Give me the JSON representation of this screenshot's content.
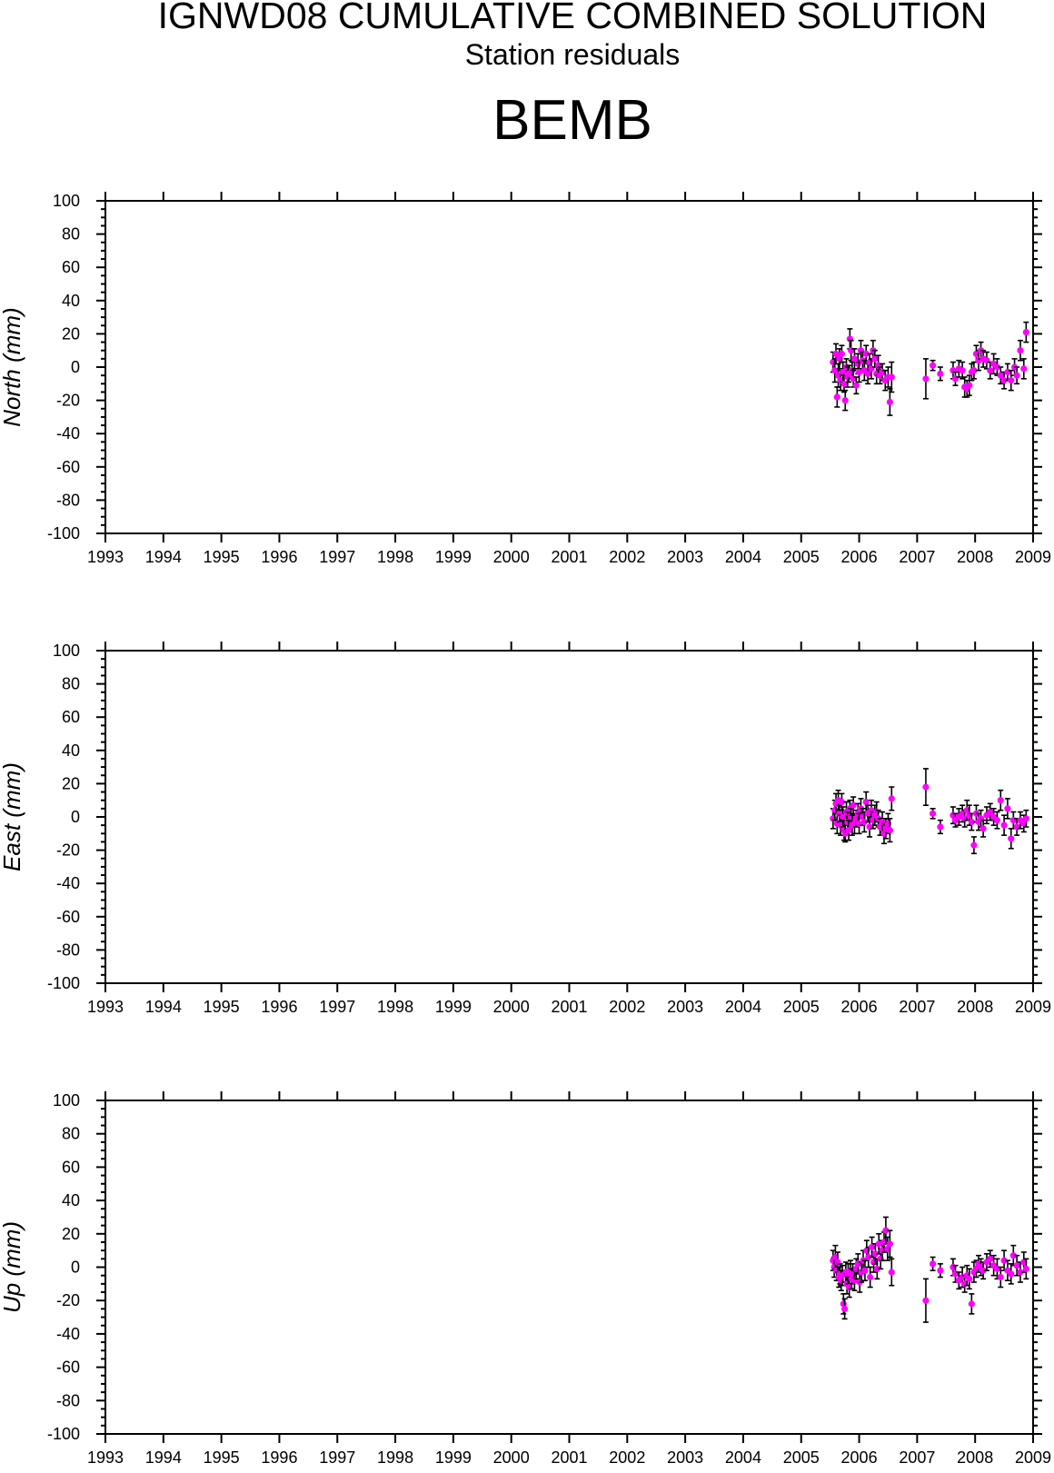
{
  "header": {
    "title": "IGNWD08 CUMULATIVE COMBINED SOLUTION",
    "subtitle": "Station residuals",
    "station": "BEMB"
  },
  "colors": {
    "marker": "#ff00ff",
    "errorbar": "#000000",
    "axis": "#000000"
  },
  "chart_data": [
    {
      "type": "scatter",
      "ylabel": "North (mm)",
      "xlim": [
        1993,
        2009
      ],
      "ylim": [
        -100,
        100
      ],
      "x_ticks": [
        "1993",
        "1994",
        "1995",
        "1996",
        "1997",
        "1998",
        "1999",
        "2000",
        "2001",
        "2002",
        "2003",
        "2004",
        "2005",
        "2006",
        "2007",
        "2008",
        "2009"
      ],
      "y_ticks": [
        "100",
        "80",
        "60",
        "40",
        "20",
        "0",
        "-20",
        "-40",
        "-60",
        "-80",
        "-100"
      ],
      "errorbars": true,
      "grid": false,
      "points": [
        [
          2005.55,
          3,
          6
        ],
        [
          2005.58,
          -2,
          7
        ],
        [
          2005.6,
          8,
          6
        ],
        [
          2005.62,
          -18,
          6
        ],
        [
          2005.64,
          -5,
          7
        ],
        [
          2005.66,
          5,
          6
        ],
        [
          2005.68,
          -8,
          6
        ],
        [
          2005.7,
          8,
          5
        ],
        [
          2005.72,
          -3,
          6
        ],
        [
          2005.74,
          -10,
          5
        ],
        [
          2005.76,
          -20,
          6
        ],
        [
          2005.78,
          0,
          5
        ],
        [
          2005.8,
          -6,
          6
        ],
        [
          2005.82,
          -4,
          5
        ],
        [
          2005.84,
          17,
          6
        ],
        [
          2005.86,
          10,
          6
        ],
        [
          2005.88,
          -2,
          5
        ],
        [
          2005.9,
          -7,
          5
        ],
        [
          2005.92,
          5,
          6
        ],
        [
          2005.95,
          -11,
          5
        ],
        [
          2005.98,
          2,
          6
        ],
        [
          2006.0,
          -3,
          6
        ],
        [
          2006.03,
          10,
          6
        ],
        [
          2006.06,
          4,
          5
        ],
        [
          2006.09,
          -2,
          6
        ],
        [
          2006.12,
          8,
          5
        ],
        [
          2006.15,
          -4,
          6
        ],
        [
          2006.18,
          3,
          5
        ],
        [
          2006.21,
          -1,
          6
        ],
        [
          2006.24,
          10,
          6
        ],
        [
          2006.27,
          5,
          5
        ],
        [
          2006.3,
          -4,
          6
        ],
        [
          2006.33,
          1,
          6
        ],
        [
          2006.36,
          -5,
          5
        ],
        [
          2006.4,
          -3,
          5
        ],
        [
          2006.45,
          -8,
          6
        ],
        [
          2006.5,
          -6,
          6
        ],
        [
          2006.53,
          -21,
          8
        ],
        [
          2006.56,
          -6,
          9
        ],
        [
          2007.15,
          -7,
          12
        ],
        [
          2007.27,
          1,
          3
        ],
        [
          2007.4,
          -4,
          4
        ],
        [
          2007.62,
          -2,
          5
        ],
        [
          2007.66,
          -7,
          4
        ],
        [
          2007.72,
          -1,
          5
        ],
        [
          2007.78,
          -2,
          5
        ],
        [
          2007.82,
          -12,
          6
        ],
        [
          2007.86,
          -13,
          5
        ],
        [
          2007.9,
          -11,
          6
        ],
        [
          2007.94,
          -3,
          5
        ],
        [
          2007.98,
          -2,
          5
        ],
        [
          2008.02,
          8,
          5
        ],
        [
          2008.06,
          4,
          6
        ],
        [
          2008.1,
          10,
          5
        ],
        [
          2008.14,
          5,
          5
        ],
        [
          2008.2,
          4,
          5
        ],
        [
          2008.26,
          -2,
          5
        ],
        [
          2008.32,
          2,
          6
        ],
        [
          2008.38,
          0,
          5
        ],
        [
          2008.44,
          -5,
          5
        ],
        [
          2008.5,
          -8,
          5
        ],
        [
          2008.56,
          -3,
          5
        ],
        [
          2008.62,
          -8,
          6
        ],
        [
          2008.68,
          0,
          5
        ],
        [
          2008.72,
          -5,
          5
        ],
        [
          2008.78,
          10,
          6
        ],
        [
          2008.84,
          -1,
          6
        ],
        [
          2008.88,
          21,
          6
        ]
      ]
    },
    {
      "type": "scatter",
      "ylabel": "East (mm)",
      "xlim": [
        1993,
        2009
      ],
      "ylim": [
        -100,
        100
      ],
      "x_ticks": [
        "1993",
        "1994",
        "1995",
        "1996",
        "1997",
        "1998",
        "1999",
        "2000",
        "2001",
        "2002",
        "2003",
        "2004",
        "2005",
        "2006",
        "2007",
        "2008",
        "2009"
      ],
      "y_ticks": [
        "100",
        "80",
        "60",
        "40",
        "20",
        "0",
        "-20",
        "-40",
        "-60",
        "-80",
        "-100"
      ],
      "errorbars": true,
      "grid": false,
      "points": [
        [
          2005.55,
          -1,
          6
        ],
        [
          2005.58,
          4,
          6
        ],
        [
          2005.6,
          8,
          6
        ],
        [
          2005.62,
          -4,
          6
        ],
        [
          2005.64,
          10,
          6
        ],
        [
          2005.66,
          2,
          5
        ],
        [
          2005.68,
          -5,
          6
        ],
        [
          2005.7,
          9,
          5
        ],
        [
          2005.72,
          0,
          6
        ],
        [
          2005.74,
          -8,
          6
        ],
        [
          2005.76,
          -10,
          5
        ],
        [
          2005.78,
          3,
          6
        ],
        [
          2005.8,
          -3,
          6
        ],
        [
          2005.82,
          -8,
          6
        ],
        [
          2005.84,
          5,
          5
        ],
        [
          2005.86,
          0,
          5
        ],
        [
          2005.88,
          -5,
          6
        ],
        [
          2005.9,
          7,
          5
        ],
        [
          2005.92,
          -4,
          6
        ],
        [
          2005.95,
          -1,
          5
        ],
        [
          2005.98,
          2,
          6
        ],
        [
          2006.0,
          -4,
          6
        ],
        [
          2006.03,
          5,
          6
        ],
        [
          2006.06,
          0,
          5
        ],
        [
          2006.09,
          -3,
          6
        ],
        [
          2006.12,
          9,
          6
        ],
        [
          2006.15,
          2,
          5
        ],
        [
          2006.18,
          -6,
          6
        ],
        [
          2006.21,
          4,
          6
        ],
        [
          2006.24,
          -2,
          5
        ],
        [
          2006.27,
          1,
          6
        ],
        [
          2006.3,
          3,
          6
        ],
        [
          2006.33,
          -1,
          5
        ],
        [
          2006.36,
          -6,
          5
        ],
        [
          2006.4,
          -3,
          6
        ],
        [
          2006.43,
          -10,
          6
        ],
        [
          2006.46,
          -7,
          6
        ],
        [
          2006.5,
          -4,
          6
        ],
        [
          2006.53,
          -8,
          7
        ],
        [
          2006.56,
          11,
          7
        ],
        [
          2007.15,
          18,
          11
        ],
        [
          2007.27,
          2,
          3
        ],
        [
          2007.4,
          -6,
          4
        ],
        [
          2007.62,
          1,
          5
        ],
        [
          2007.66,
          -2,
          4
        ],
        [
          2007.72,
          0,
          5
        ],
        [
          2007.78,
          2,
          5
        ],
        [
          2007.82,
          -1,
          5
        ],
        [
          2007.86,
          4,
          6
        ],
        [
          2007.9,
          1,
          6
        ],
        [
          2007.94,
          -3,
          5
        ],
        [
          2007.98,
          -17,
          5
        ],
        [
          2008.02,
          2,
          5
        ],
        [
          2008.06,
          -3,
          5
        ],
        [
          2008.1,
          -1,
          5
        ],
        [
          2008.14,
          -7,
          5
        ],
        [
          2008.2,
          1,
          5
        ],
        [
          2008.26,
          3,
          5
        ],
        [
          2008.32,
          0,
          5
        ],
        [
          2008.38,
          -2,
          5
        ],
        [
          2008.44,
          10,
          6
        ],
        [
          2008.5,
          -5,
          6
        ],
        [
          2008.56,
          5,
          6
        ],
        [
          2008.62,
          -13,
          6
        ],
        [
          2008.66,
          -2,
          5
        ],
        [
          2008.72,
          -6,
          5
        ],
        [
          2008.78,
          -2,
          5
        ],
        [
          2008.84,
          -4,
          5
        ],
        [
          2008.88,
          -1,
          5
        ]
      ]
    },
    {
      "type": "scatter",
      "ylabel": "Up (mm)",
      "xlim": [
        1993,
        2009
      ],
      "ylim": [
        -100,
        100
      ],
      "x_ticks": [
        "1993",
        "1994",
        "1995",
        "1996",
        "1997",
        "1998",
        "1999",
        "2000",
        "2001",
        "2002",
        "2003",
        "2004",
        "2005",
        "2006",
        "2007",
        "2008",
        "2009"
      ],
      "y_ticks": [
        "100",
        "80",
        "60",
        "40",
        "20",
        "0",
        "-20",
        "-40",
        "-60",
        "-80",
        "-100"
      ],
      "errorbars": true,
      "grid": false,
      "points": [
        [
          2005.55,
          4,
          6
        ],
        [
          2005.57,
          0,
          6
        ],
        [
          2005.59,
          6,
          7
        ],
        [
          2005.61,
          -2,
          6
        ],
        [
          2005.63,
          3,
          6
        ],
        [
          2005.65,
          -6,
          6
        ],
        [
          2005.67,
          -4,
          6
        ],
        [
          2005.69,
          -8,
          6
        ],
        [
          2005.71,
          -5,
          6
        ],
        [
          2005.73,
          -22,
          6
        ],
        [
          2005.75,
          -25,
          6
        ],
        [
          2005.77,
          -3,
          6
        ],
        [
          2005.79,
          -10,
          6
        ],
        [
          2005.81,
          -4,
          6
        ],
        [
          2005.83,
          -12,
          6
        ],
        [
          2005.85,
          -2,
          6
        ],
        [
          2005.87,
          -7,
          6
        ],
        [
          2005.89,
          -4,
          6
        ],
        [
          2005.92,
          -8,
          6
        ],
        [
          2005.95,
          -1,
          6
        ],
        [
          2005.98,
          2,
          6
        ],
        [
          2006.01,
          -9,
          6
        ],
        [
          2006.04,
          -3,
          6
        ],
        [
          2006.07,
          4,
          6
        ],
        [
          2006.1,
          -2,
          6
        ],
        [
          2006.13,
          10,
          6
        ],
        [
          2006.16,
          6,
          6
        ],
        [
          2006.19,
          -6,
          6
        ],
        [
          2006.22,
          12,
          6
        ],
        [
          2006.25,
          3,
          6
        ],
        [
          2006.28,
          8,
          6
        ],
        [
          2006.31,
          -1,
          6
        ],
        [
          2006.34,
          14,
          6
        ],
        [
          2006.37,
          5,
          6
        ],
        [
          2006.4,
          10,
          6
        ],
        [
          2006.43,
          15,
          6
        ],
        [
          2006.46,
          22,
          8
        ],
        [
          2006.49,
          11,
          7
        ],
        [
          2006.53,
          14,
          8
        ],
        [
          2006.56,
          -3,
          8
        ],
        [
          2007.15,
          -20,
          13
        ],
        [
          2007.27,
          2,
          4
        ],
        [
          2007.4,
          -2,
          4
        ],
        [
          2007.62,
          0,
          5
        ],
        [
          2007.66,
          -4,
          5
        ],
        [
          2007.72,
          -8,
          5
        ],
        [
          2007.78,
          -6,
          6
        ],
        [
          2007.82,
          -10,
          5
        ],
        [
          2007.86,
          -5,
          6
        ],
        [
          2007.9,
          -7,
          6
        ],
        [
          2007.94,
          -22,
          6
        ],
        [
          2007.98,
          -3,
          6
        ],
        [
          2008.02,
          -1,
          5
        ],
        [
          2008.06,
          2,
          5
        ],
        [
          2008.1,
          0,
          5
        ],
        [
          2008.14,
          -2,
          5
        ],
        [
          2008.2,
          3,
          5
        ],
        [
          2008.26,
          5,
          5
        ],
        [
          2008.32,
          1,
          6
        ],
        [
          2008.38,
          -1,
          6
        ],
        [
          2008.44,
          -6,
          6
        ],
        [
          2008.5,
          4,
          6
        ],
        [
          2008.56,
          -2,
          6
        ],
        [
          2008.62,
          -4,
          6
        ],
        [
          2008.66,
          7,
          6
        ],
        [
          2008.72,
          1,
          6
        ],
        [
          2008.78,
          -3,
          6
        ],
        [
          2008.84,
          3,
          6
        ],
        [
          2008.88,
          -1,
          6
        ]
      ]
    }
  ]
}
